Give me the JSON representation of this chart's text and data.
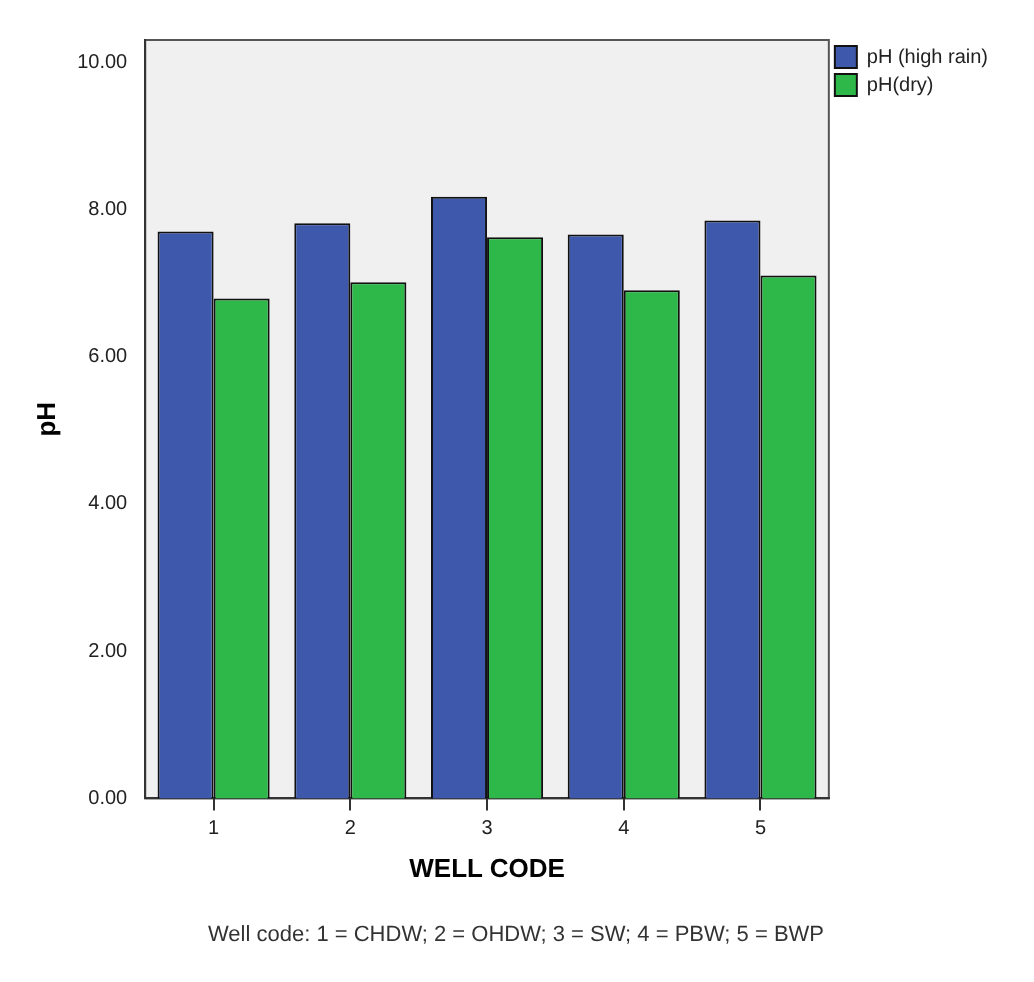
{
  "chart_data": {
    "type": "bar",
    "xlabel": "WELL CODE",
    "ylabel": "pH",
    "categories": [
      "1",
      "2",
      "3",
      "4",
      "5"
    ],
    "series": [
      {
        "name": "pH (high rain)",
        "color": "#3e58ac",
        "values": [
          7.7,
          7.81,
          8.17,
          7.66,
          7.85
        ]
      },
      {
        "name": "pH(dry)",
        "color": "#2fb84a",
        "values": [
          6.79,
          7.01,
          7.62,
          6.9,
          7.1
        ]
      }
    ],
    "ylim": [
      0,
      10.3
    ],
    "yticks": [
      {
        "value": 0,
        "label": "0.00"
      },
      {
        "value": 2,
        "label": "2.00"
      },
      {
        "value": 4,
        "label": "4.00"
      },
      {
        "value": 6,
        "label": "6.00"
      },
      {
        "value": 8,
        "label": "8.00"
      },
      {
        "value": 10,
        "label": "10.00"
      }
    ],
    "grid": false,
    "legend": "top right",
    "annotations": [
      "Well code: 1 = CHDW; 2 = OHDW; 3 = SW; 4 = PBW; 5 = BWP"
    ]
  }
}
